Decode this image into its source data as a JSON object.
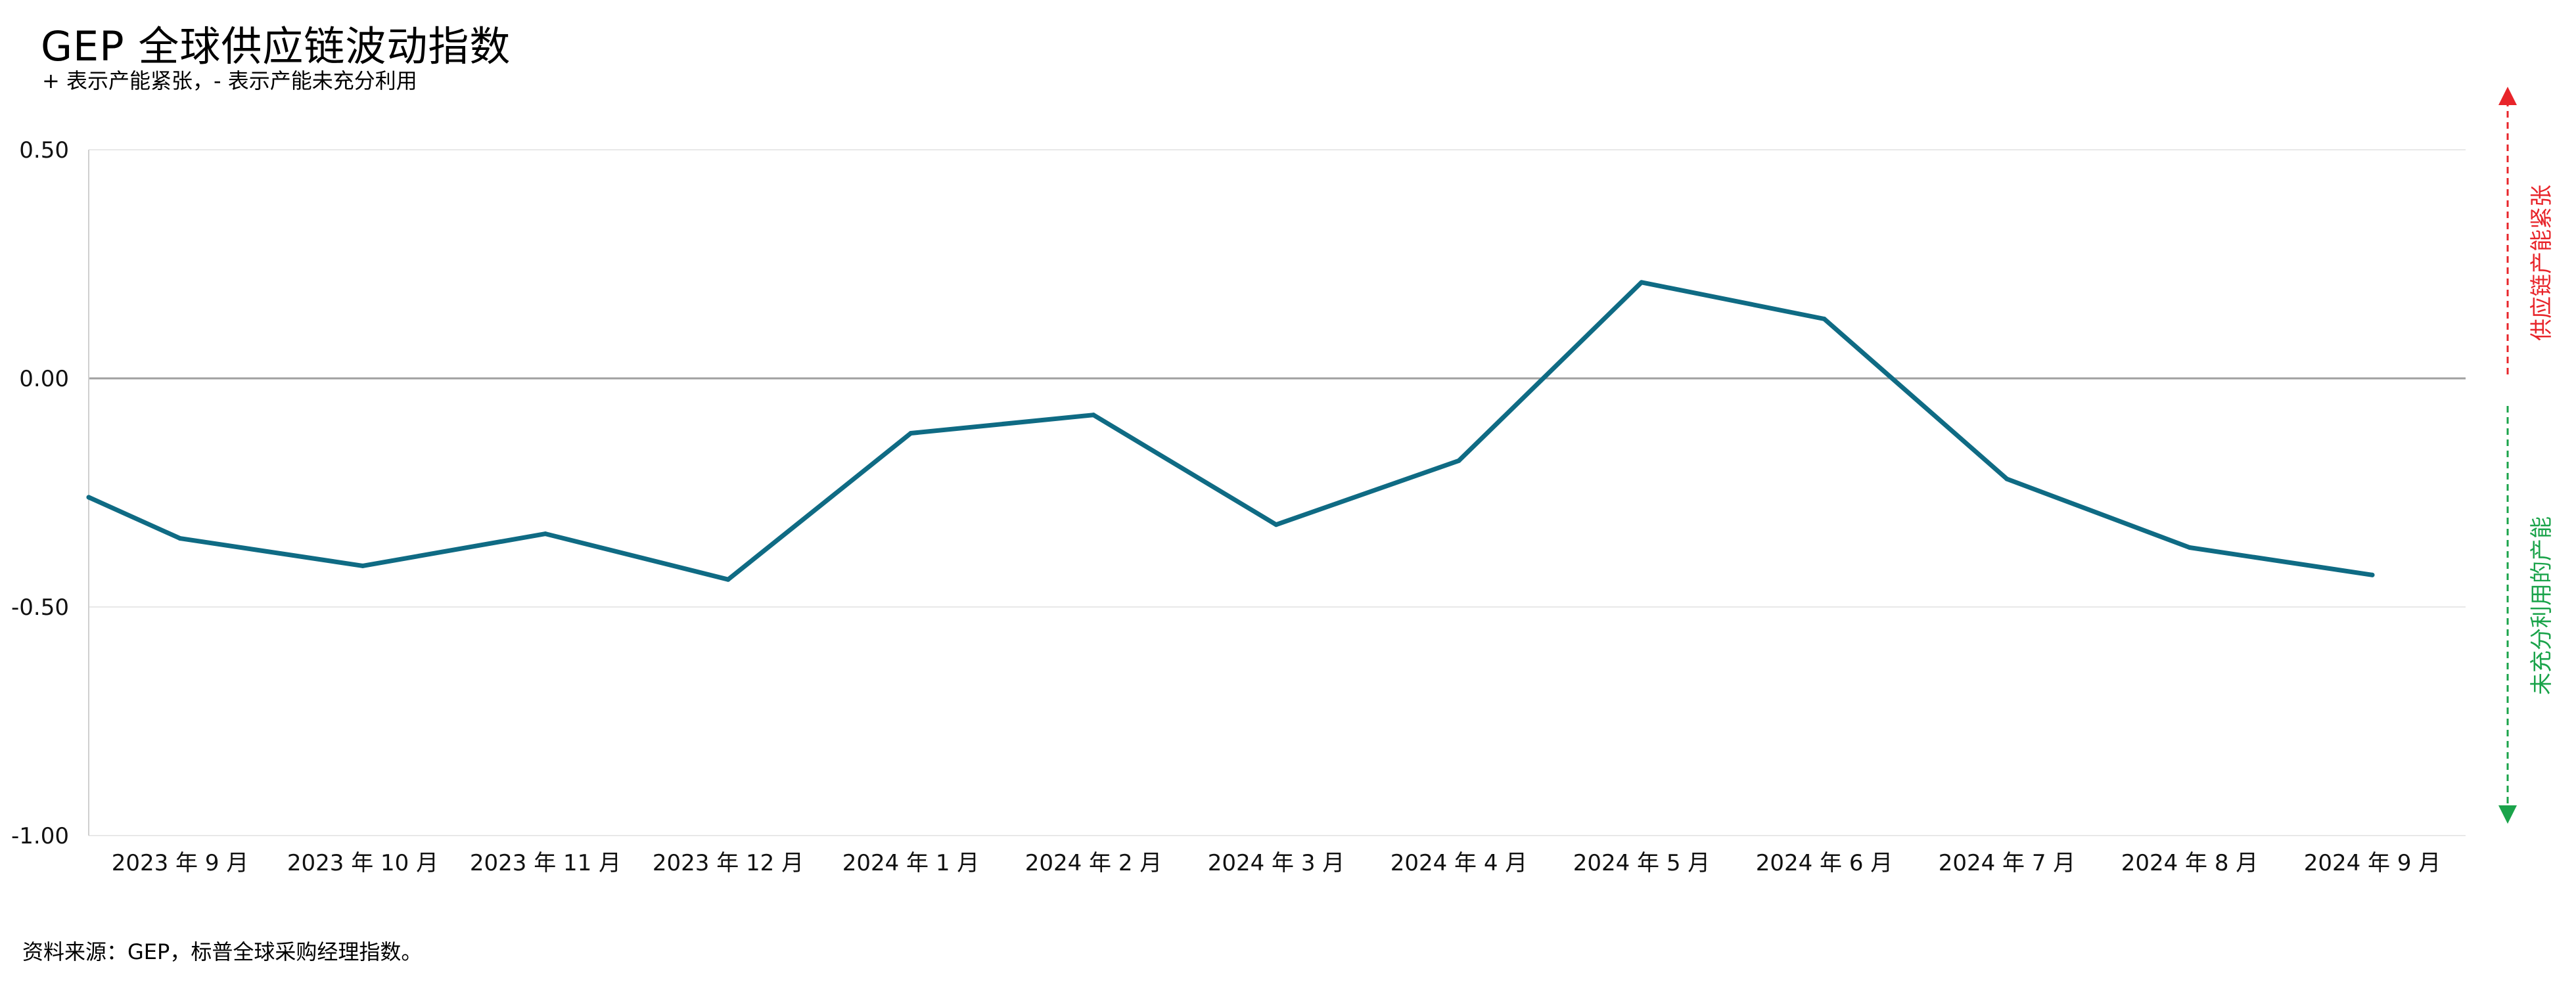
{
  "title": "GEP 全球供应链波动指数",
  "subtitle": "+ 表示产能紧张，- 表示产能未充分利用",
  "source": "资料来源：GEP，标普全球采购经理指数。",
  "side_labels": {
    "up": "供应链产能紧张",
    "down": "未充分利用的产能"
  },
  "colors": {
    "line": "#0f6b84",
    "up_label": "#e8242a",
    "down_label": "#1aa34a",
    "zero_line": "#a0a0a0",
    "grid": "#e8e8e8"
  },
  "chart_data": {
    "type": "line",
    "categories": [
      "2023 年 9 月",
      "2023 年 10 月",
      "2023 年 11 月",
      "2023 年 12 月",
      "2024 年 1 月",
      "2024 年 2 月",
      "2024 年 3 月",
      "2024 年 4 月",
      "2024 年 5 月",
      "2024 年 6 月",
      "2024 年 7 月",
      "2024 年 8 月",
      "2024 年 9 月"
    ],
    "x": [
      0,
      1,
      2,
      3,
      4,
      5,
      6,
      7,
      8,
      9,
      10,
      11,
      12,
      13,
      14,
      15,
      16,
      17,
      18,
      19,
      20,
      21,
      22,
      23,
      24,
      25,
      26
    ],
    "values": [
      -0.26,
      null,
      -0.35,
      null,
      -0.41,
      null,
      -0.34,
      null,
      -0.44,
      null,
      -0.12,
      null,
      -0.08,
      null,
      -0.32,
      null,
      -0.18,
      null,
      0.21,
      null,
      0.13,
      null,
      -0.22,
      null,
      -0.37,
      null,
      -0.43
    ],
    "points": [
      {
        "x": 0,
        "y": -0.26
      },
      {
        "x": 1,
        "y": -0.35
      },
      {
        "x": 3,
        "y": -0.41
      },
      {
        "x": 5,
        "y": -0.34
      },
      {
        "x": 7,
        "y": -0.44
      },
      {
        "x": 9,
        "y": -0.12
      },
      {
        "x": 11,
        "y": -0.08
      },
      {
        "x": 13,
        "y": -0.32
      },
      {
        "x": 15,
        "y": -0.18
      },
      {
        "x": 17,
        "y": 0.21
      },
      {
        "x": 19,
        "y": 0.13
      },
      {
        "x": 21,
        "y": -0.22
      },
      {
        "x": 23,
        "y": -0.37
      },
      {
        "x": 25,
        "y": -0.43
      }
    ],
    "yticks": [
      0.5,
      0.0,
      -0.5,
      -1.0
    ],
    "ytick_labels": [
      "0.50",
      "0.00",
      "-0.50",
      "-1.00"
    ],
    "ylim": [
      -1.0,
      0.5
    ],
    "xlim": [
      0,
      26
    ],
    "xlabel": "",
    "ylabel": "",
    "grid": true
  }
}
